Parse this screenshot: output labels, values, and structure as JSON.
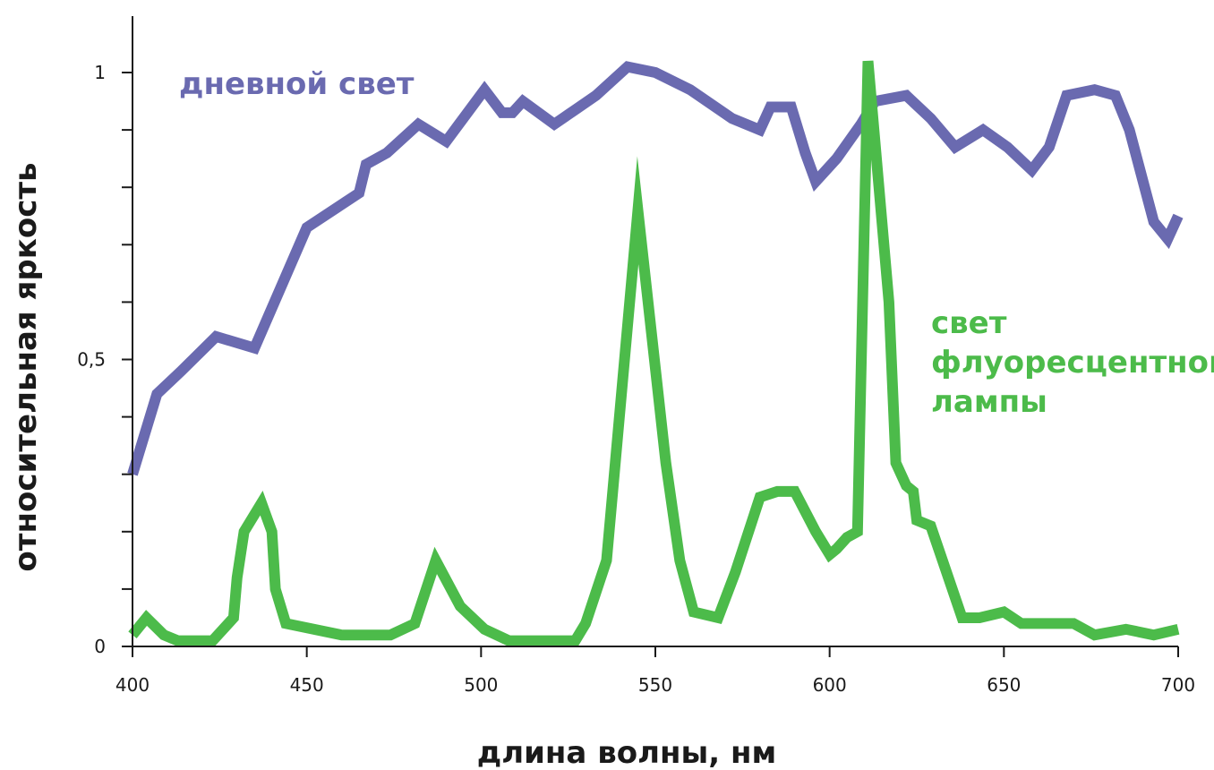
{
  "chart_data": {
    "type": "line",
    "xlabel": "длина волны, нм",
    "ylabel": "относительная яркость",
    "xlim": [
      400,
      700
    ],
    "ylim": [
      0,
      1.1
    ],
    "x_ticks": [
      400,
      450,
      500,
      550,
      600,
      650,
      700
    ],
    "x_tick_labels": [
      "400",
      "450",
      "500",
      "550",
      "600",
      "650",
      "700"
    ],
    "y_ticks": [
      0,
      0.1,
      0.2,
      0.3,
      0.4,
      0.5,
      0.6,
      0.7,
      0.8,
      0.9,
      1.0
    ],
    "y_tick_labels": [
      {
        "value": 0,
        "label": "0"
      },
      {
        "value": 0.5,
        "label": "0,5"
      },
      {
        "value": 1.0,
        "label": "1"
      }
    ],
    "grid": false,
    "colors": {
      "daylight": "#6a6ab0",
      "fluorescent": "#4cbb4a",
      "axis": "#1a1a1a"
    },
    "series": [
      {
        "name": "дневной свет",
        "label_lines": [
          "дневной свет"
        ],
        "color": "#6a6ab0",
        "points": [
          [
            400,
            0.3
          ],
          [
            407,
            0.44
          ],
          [
            414,
            0.48
          ],
          [
            424,
            0.54
          ],
          [
            435,
            0.52
          ],
          [
            450,
            0.73
          ],
          [
            465,
            0.79
          ],
          [
            467,
            0.84
          ],
          [
            473,
            0.86
          ],
          [
            482,
            0.91
          ],
          [
            490,
            0.88
          ],
          [
            501,
            0.97
          ],
          [
            506,
            0.93
          ],
          [
            509,
            0.93
          ],
          [
            512,
            0.95
          ],
          [
            521,
            0.91
          ],
          [
            533,
            0.96
          ],
          [
            542,
            1.01
          ],
          [
            550,
            1.0
          ],
          [
            560,
            0.97
          ],
          [
            572,
            0.92
          ],
          [
            576,
            0.91
          ],
          [
            580,
            0.9
          ],
          [
            583,
            0.94
          ],
          [
            589,
            0.94
          ],
          [
            593,
            0.86
          ],
          [
            596,
            0.81
          ],
          [
            602,
            0.85
          ],
          [
            609,
            0.91
          ],
          [
            613,
            0.95
          ],
          [
            622,
            0.96
          ],
          [
            629,
            0.92
          ],
          [
            636,
            0.87
          ],
          [
            644,
            0.9
          ],
          [
            651,
            0.87
          ],
          [
            658,
            0.83
          ],
          [
            663,
            0.87
          ],
          [
            668,
            0.96
          ],
          [
            676,
            0.97
          ],
          [
            682,
            0.96
          ],
          [
            686,
            0.9
          ],
          [
            693,
            0.74
          ],
          [
            697,
            0.71
          ],
          [
            700,
            0.75
          ]
        ]
      },
      {
        "name": "свет флуоресцентной лампы",
        "label_lines": [
          "свет",
          "флуоресцентной",
          "лампы"
        ],
        "color": "#4cbb4a",
        "points": [
          [
            400,
            0.02
          ],
          [
            404,
            0.05
          ],
          [
            409,
            0.02
          ],
          [
            413,
            0.01
          ],
          [
            423,
            0.01
          ],
          [
            429,
            0.05
          ],
          [
            430,
            0.12
          ],
          [
            432,
            0.2
          ],
          [
            437,
            0.25
          ],
          [
            440,
            0.2
          ],
          [
            441,
            0.1
          ],
          [
            444,
            0.04
          ],
          [
            460,
            0.02
          ],
          [
            474,
            0.02
          ],
          [
            481,
            0.04
          ],
          [
            487,
            0.15
          ],
          [
            494,
            0.07
          ],
          [
            501,
            0.03
          ],
          [
            508,
            0.01
          ],
          [
            527,
            0.01
          ],
          [
            530,
            0.04
          ],
          [
            536,
            0.15
          ],
          [
            545,
            0.76
          ],
          [
            553,
            0.32
          ],
          [
            557,
            0.15
          ],
          [
            561,
            0.06
          ],
          [
            568,
            0.05
          ],
          [
            573,
            0.13
          ],
          [
            580,
            0.26
          ],
          [
            585,
            0.27
          ],
          [
            590,
            0.27
          ],
          [
            596,
            0.2
          ],
          [
            600,
            0.16
          ],
          [
            602,
            0.17
          ],
          [
            605,
            0.19
          ],
          [
            608,
            0.2
          ],
          [
            611,
            1.02
          ],
          [
            617,
            0.6
          ],
          [
            619,
            0.32
          ],
          [
            622,
            0.28
          ],
          [
            624,
            0.27
          ],
          [
            625,
            0.22
          ],
          [
            629,
            0.21
          ],
          [
            638,
            0.05
          ],
          [
            643,
            0.05
          ],
          [
            650,
            0.06
          ],
          [
            655,
            0.04
          ],
          [
            664,
            0.04
          ],
          [
            670,
            0.04
          ],
          [
            676,
            0.02
          ],
          [
            685,
            0.03
          ],
          [
            693,
            0.02
          ],
          [
            700,
            0.03
          ]
        ]
      }
    ]
  }
}
